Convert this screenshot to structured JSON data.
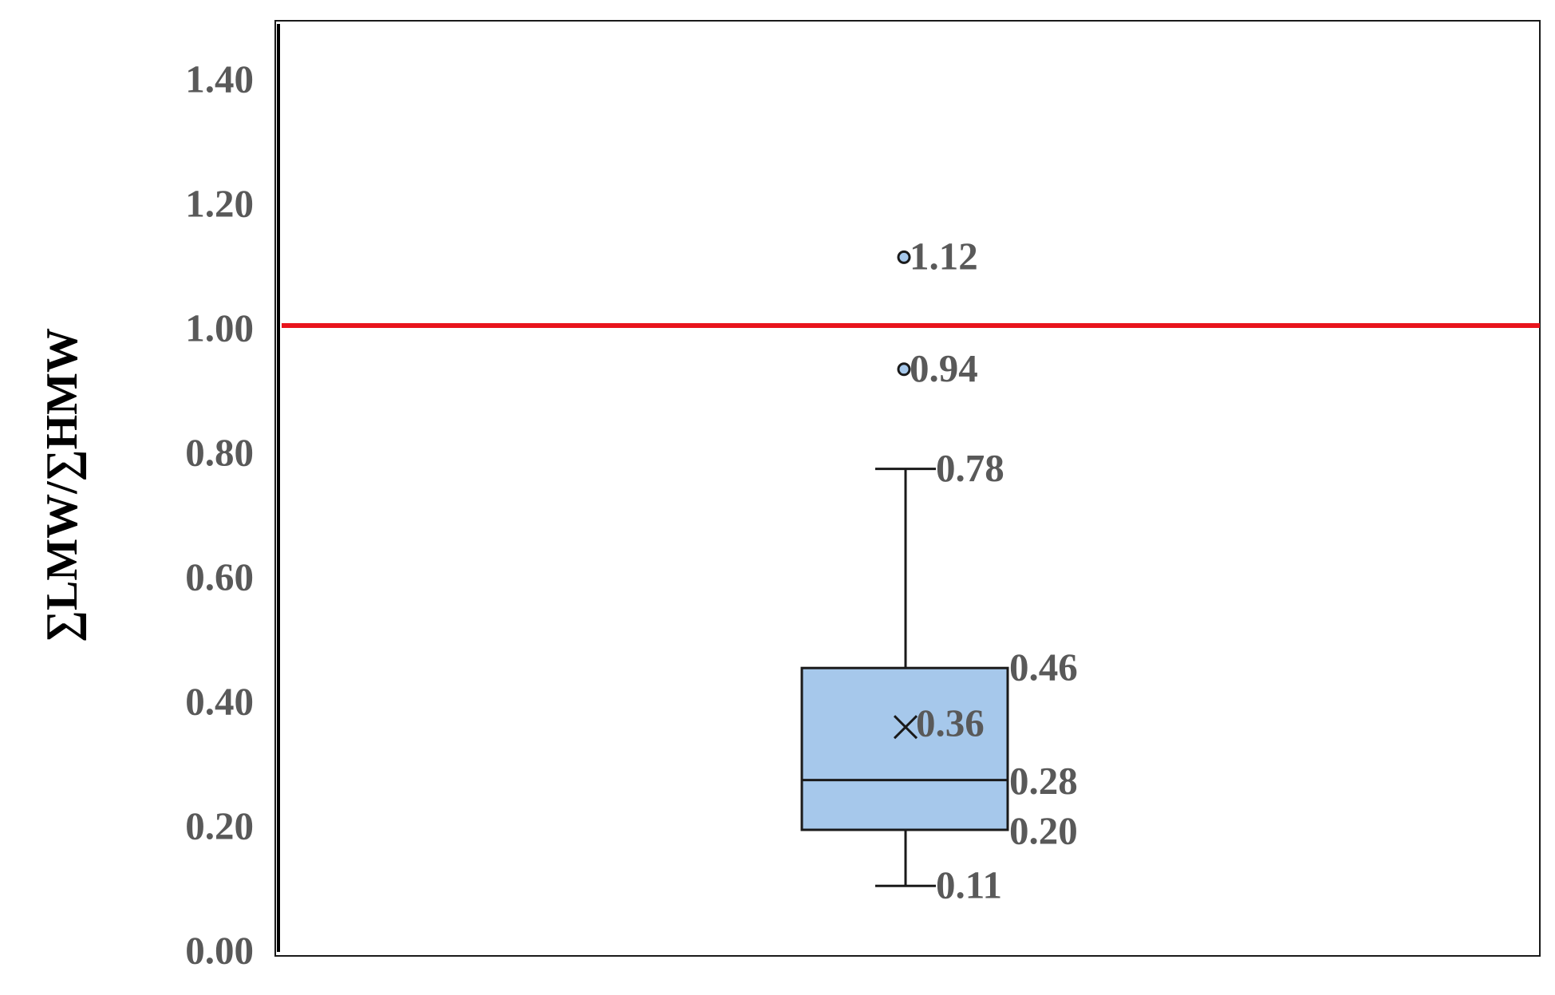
{
  "chart_data": {
    "type": "box",
    "title": "",
    "xlabel": "",
    "ylabel": "∑LMW/∑HMW",
    "ylim": [
      0,
      1.5
    ],
    "yticks": [
      0,
      0.2,
      0.4,
      0.6,
      0.8,
      1.0,
      1.2,
      1.4
    ],
    "ytick_labels": [
      "0.00",
      "0.20",
      "0.40",
      "0.60",
      "0.80",
      "1.00",
      "1.20",
      "1.40"
    ],
    "grid": false,
    "legend": "none",
    "box": {
      "min": 0.11,
      "q1": 0.2,
      "median": 0.28,
      "mean": 0.36,
      "q3": 0.46,
      "max": 0.78,
      "outliers": [
        0.94,
        1.12
      ],
      "labels": {
        "min": "0.11",
        "q1": "0.20",
        "median": "0.28",
        "mean": "0.36",
        "q3": "0.46",
        "max": "0.78",
        "outliers": [
          "0.94",
          "1.12"
        ]
      }
    },
    "reference_line": {
      "y": 1.0
    },
    "colors": {
      "box_fill": "#a6c8eb",
      "box_stroke": "#1a1a1a",
      "reference_line": "#e8141c",
      "tick_text": "#595959",
      "outlier_fill": "#a6c8eb"
    }
  }
}
